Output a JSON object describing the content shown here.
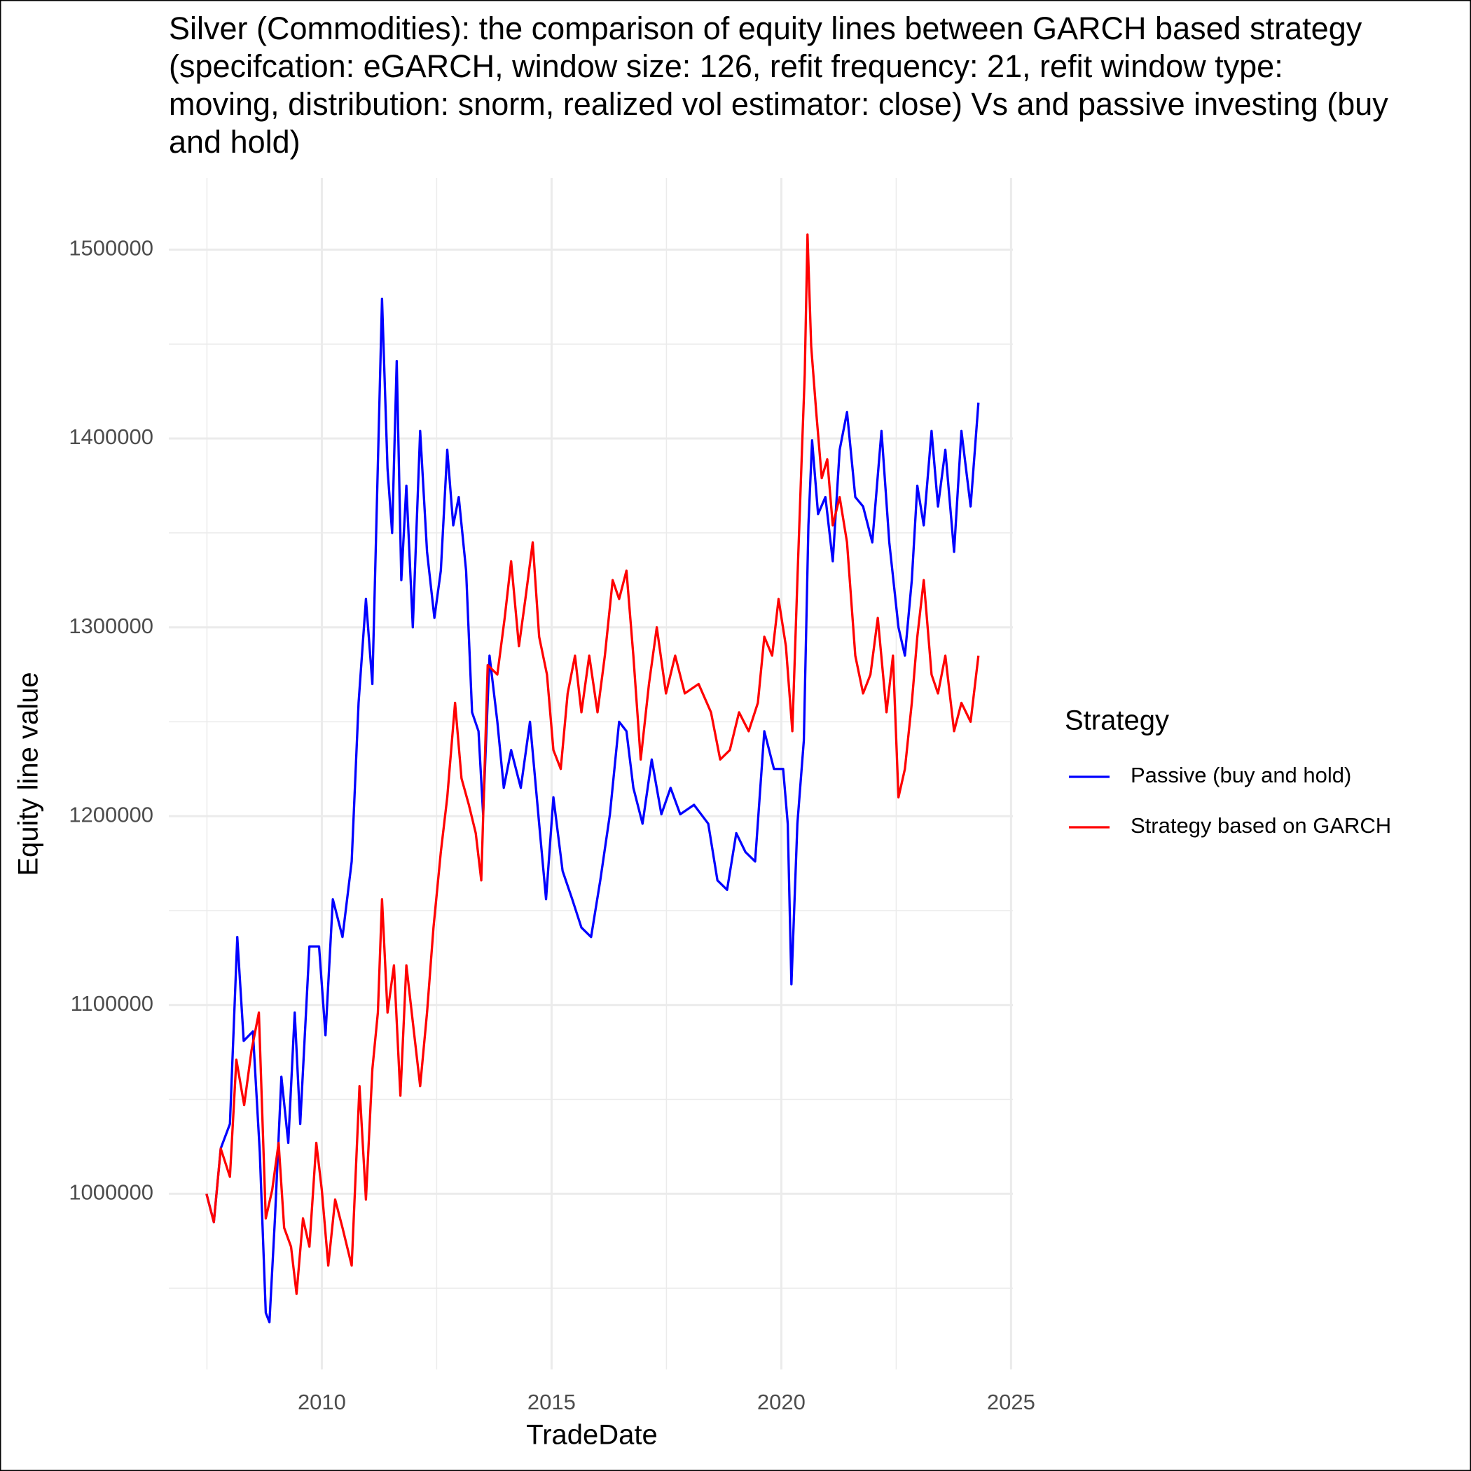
{
  "chart_data": {
    "type": "line",
    "title": "Silver (Commodities): the comparison of equity lines between GARCH based strategy (specifcation: eGARCH, window size: 126, refit frequency: 21, refit window type: moving, distribution: snorm, realized vol estimator: close) Vs and passive investing (buy and hold)",
    "xlabel": "TradeDate",
    "ylabel": "Equity line value",
    "legend_title": "Strategy",
    "legend_position": "right",
    "grid": true,
    "xlim": [
      2006.67,
      2025.04
    ],
    "xticks": [
      2010,
      2015,
      2020,
      2025
    ],
    "xminor": [
      2007.5,
      2012.5,
      2017.5,
      2022.5
    ],
    "ylim": [
      907000,
      1538000
    ],
    "yticks": [
      1000000,
      1100000,
      1200000,
      1300000,
      1400000,
      1500000
    ],
    "yminor": [
      950000,
      1050000,
      1150000,
      1250000,
      1350000,
      1450000
    ],
    "series": [
      {
        "name": "Passive (buy and hold)",
        "color": "#0000ff",
        "x": [
          2007.49,
          2007.65,
          2007.8,
          2008.0,
          2008.16,
          2008.3,
          2008.5,
          2008.65,
          2008.78,
          2008.86,
          2008.98,
          2009.12,
          2009.27,
          2009.41,
          2009.53,
          2009.73,
          2009.94,
          2010.08,
          2010.24,
          2010.45,
          2010.65,
          2010.8,
          2010.96,
          2011.1,
          2011.31,
          2011.43,
          2011.53,
          2011.63,
          2011.73,
          2011.84,
          2011.98,
          2012.14,
          2012.29,
          2012.45,
          2012.59,
          2012.73,
          2012.86,
          2012.98,
          2013.14,
          2013.27,
          2013.41,
          2013.51,
          2013.65,
          2013.82,
          2013.96,
          2014.12,
          2014.33,
          2014.53,
          2014.73,
          2014.88,
          2015.04,
          2015.24,
          2015.45,
          2015.65,
          2015.86,
          2016.06,
          2016.27,
          2016.47,
          2016.63,
          2016.78,
          2016.98,
          2017.18,
          2017.39,
          2017.59,
          2017.8,
          2018.1,
          2018.41,
          2018.61,
          2018.82,
          2019.02,
          2019.22,
          2019.43,
          2019.63,
          2019.84,
          2020.04,
          2020.14,
          2020.22,
          2020.35,
          2020.49,
          2020.59,
          2020.67,
          2020.8,
          2020.96,
          2021.12,
          2021.27,
          2021.43,
          2021.61,
          2021.78,
          2021.98,
          2022.18,
          2022.35,
          2022.55,
          2022.69,
          2022.84,
          2022.96,
          2023.1,
          2023.27,
          2023.41,
          2023.57,
          2023.76,
          2023.92,
          2024.12,
          2024.29
        ],
        "values": [
          1000000,
          985000,
          1024000,
          1037000,
          1136000,
          1081000,
          1086000,
          1022000,
          937000,
          932000,
          987000,
          1062000,
          1027000,
          1096000,
          1037000,
          1131000,
          1131000,
          1084000,
          1156000,
          1136000,
          1176000,
          1260000,
          1315000,
          1270000,
          1474000,
          1384000,
          1350000,
          1441000,
          1325000,
          1375000,
          1300000,
          1404000,
          1340000,
          1305000,
          1330000,
          1394000,
          1354000,
          1369000,
          1330000,
          1255000,
          1245000,
          1201000,
          1285000,
          1250000,
          1215000,
          1235000,
          1215000,
          1250000,
          1196000,
          1156000,
          1210000,
          1171000,
          1156000,
          1141000,
          1136000,
          1166000,
          1201000,
          1250000,
          1245000,
          1215000,
          1196000,
          1230000,
          1201000,
          1215000,
          1201000,
          1206000,
          1196000,
          1166000,
          1161000,
          1191000,
          1181000,
          1176000,
          1245000,
          1225000,
          1225000,
          1196000,
          1111000,
          1196000,
          1240000,
          1354000,
          1399000,
          1360000,
          1369000,
          1335000,
          1394000,
          1414000,
          1369000,
          1364000,
          1345000,
          1404000,
          1345000,
          1300000,
          1285000,
          1325000,
          1375000,
          1354000,
          1404000,
          1364000,
          1394000,
          1340000,
          1404000,
          1364000,
          1419000
        ]
      },
      {
        "name": "Strategy based on GARCH",
        "color": "#ff0000",
        "x": [
          2007.49,
          2007.65,
          2007.8,
          2008.0,
          2008.14,
          2008.31,
          2008.47,
          2008.63,
          2008.78,
          2008.92,
          2009.06,
          2009.18,
          2009.33,
          2009.45,
          2009.59,
          2009.73,
          2009.88,
          2010.0,
          2010.14,
          2010.29,
          2010.45,
          2010.65,
          2010.82,
          2010.96,
          2011.1,
          2011.22,
          2011.31,
          2011.43,
          2011.57,
          2011.71,
          2011.84,
          2011.98,
          2012.14,
          2012.29,
          2012.43,
          2012.59,
          2012.73,
          2012.9,
          2013.04,
          2013.2,
          2013.35,
          2013.47,
          2013.61,
          2013.82,
          2013.98,
          2014.12,
          2014.29,
          2014.43,
          2014.59,
          2014.73,
          2014.9,
          2015.04,
          2015.2,
          2015.35,
          2015.51,
          2015.65,
          2015.82,
          2016.0,
          2016.16,
          2016.33,
          2016.47,
          2016.63,
          2016.78,
          2016.94,
          2017.12,
          2017.29,
          2017.49,
          2017.69,
          2017.9,
          2018.2,
          2018.47,
          2018.67,
          2018.88,
          2019.08,
          2019.29,
          2019.49,
          2019.63,
          2019.8,
          2019.94,
          2020.1,
          2020.24,
          2020.35,
          2020.45,
          2020.51,
          2020.57,
          2020.65,
          2020.76,
          2020.88,
          2021.0,
          2021.12,
          2021.27,
          2021.43,
          2021.61,
          2021.78,
          2021.94,
          2022.1,
          2022.29,
          2022.43,
          2022.55,
          2022.69,
          2022.84,
          2022.96,
          2023.1,
          2023.27,
          2023.41,
          2023.57,
          2023.76,
          2023.92,
          2024.12,
          2024.29
        ],
        "values": [
          1000000,
          985000,
          1024000,
          1009000,
          1071000,
          1047000,
          1076000,
          1096000,
          987000,
          1002000,
          1027000,
          982000,
          972000,
          947000,
          987000,
          972000,
          1027000,
          1002000,
          962000,
          997000,
          982000,
          962000,
          1057000,
          997000,
          1066000,
          1096000,
          1156000,
          1096000,
          1121000,
          1052000,
          1121000,
          1091000,
          1057000,
          1096000,
          1141000,
          1181000,
          1210000,
          1260000,
          1220000,
          1206000,
          1191000,
          1166000,
          1280000,
          1275000,
          1305000,
          1335000,
          1290000,
          1315000,
          1345000,
          1295000,
          1275000,
          1235000,
          1225000,
          1265000,
          1285000,
          1255000,
          1285000,
          1255000,
          1285000,
          1325000,
          1315000,
          1330000,
          1285000,
          1230000,
          1270000,
          1300000,
          1265000,
          1285000,
          1265000,
          1270000,
          1255000,
          1230000,
          1235000,
          1255000,
          1245000,
          1260000,
          1295000,
          1285000,
          1315000,
          1290000,
          1245000,
          1325000,
          1394000,
          1434000,
          1508000,
          1449000,
          1414000,
          1379000,
          1389000,
          1354000,
          1369000,
          1345000,
          1285000,
          1265000,
          1275000,
          1305000,
          1255000,
          1285000,
          1210000,
          1225000,
          1260000,
          1295000,
          1325000,
          1275000,
          1265000,
          1285000,
          1245000,
          1260000,
          1250000,
          1285000
        ]
      }
    ]
  }
}
